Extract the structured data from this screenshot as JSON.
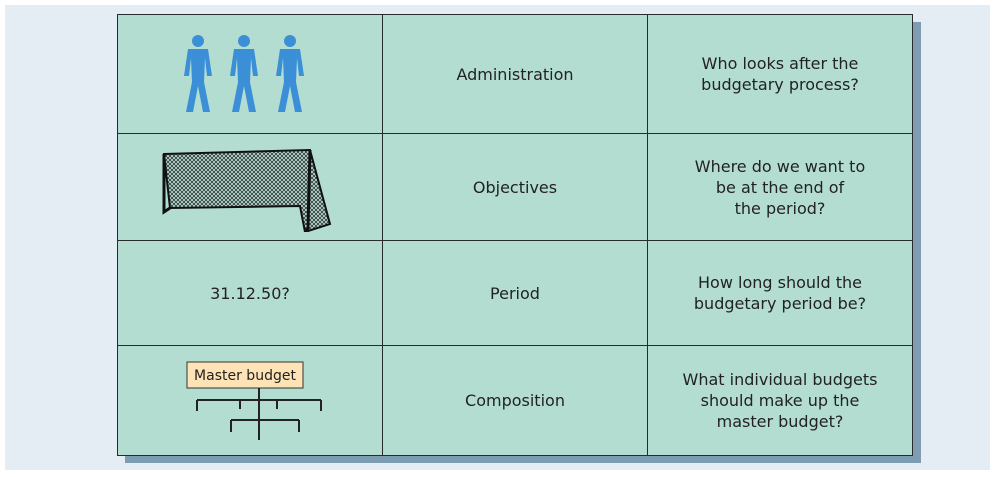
{
  "rows": [
    {
      "label": "Administration",
      "question": [
        "Who looks after the",
        "budgetary process?"
      ]
    },
    {
      "label": "Objectives",
      "question": [
        "Where do we want to",
        "be at the end of",
        "the period?"
      ]
    },
    {
      "date": "31.12.50?",
      "label": "Period",
      "question": [
        "How long should the",
        "budgetary period be?"
      ]
    },
    {
      "box": "Master budget",
      "label": "Composition",
      "question": [
        "What individual budgets",
        "should make up the",
        "master budget?"
      ]
    }
  ]
}
